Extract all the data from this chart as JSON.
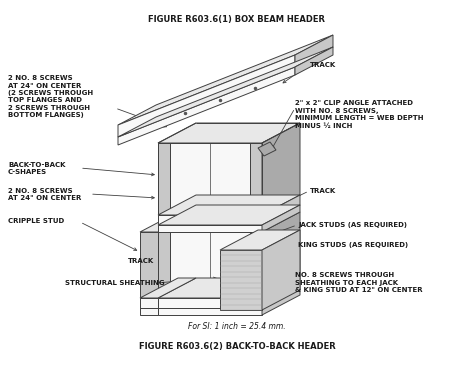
{
  "title_top": "FIGURE R603.6(1) BOX BEAM HEADER",
  "title_bottom": "FIGURE R603.6(2) BACK-TO-BACK HEADER",
  "si_note": "For SI: 1 inch = 25.4 mm.",
  "bg_color": "#ffffff",
  "line_color": "#404040",
  "text_color": "#1a1a1a",
  "shade_light": "#e8e8e8",
  "shade_mid": "#c8c8c8",
  "shade_dark": "#aaaaaa",
  "shade_white": "#f8f8f8"
}
